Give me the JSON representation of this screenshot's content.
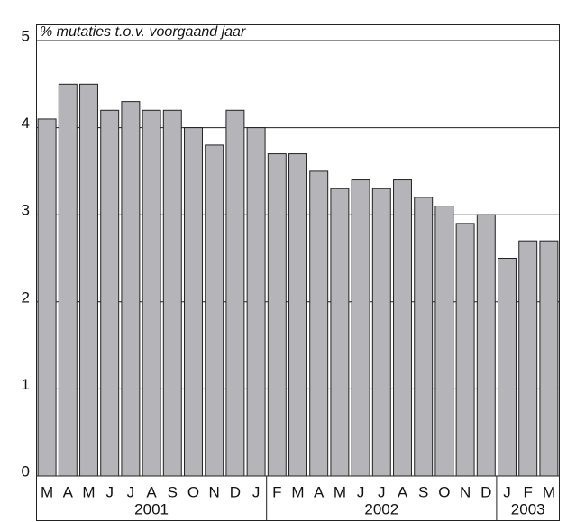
{
  "chart_data": {
    "type": "bar",
    "title": "% mutaties t.o.v. voorgaand jaar",
    "groups": [
      {
        "label": "2001",
        "categories": [
          "M",
          "A",
          "M",
          "J",
          "J",
          "A",
          "S",
          "O",
          "N",
          "D",
          "J"
        ]
      },
      {
        "label": "2002",
        "categories": [
          "F",
          "M",
          "A",
          "M",
          "J",
          "J",
          "A",
          "S",
          "O",
          "N",
          "D"
        ]
      },
      {
        "label": "2003",
        "categories": [
          "J",
          "F",
          "M"
        ]
      }
    ],
    "values": [
      4.1,
      4.5,
      4.5,
      4.2,
      4.3,
      4.2,
      4.2,
      4.0,
      3.8,
      4.2,
      4.0,
      3.7,
      3.7,
      3.5,
      3.3,
      3.4,
      3.3,
      3.4,
      3.2,
      3.1,
      2.9,
      3.0,
      2.5,
      2.7,
      2.7
    ],
    "color": "#b5b5b9",
    "ylim": [
      0,
      5
    ],
    "yticks": [
      0,
      1,
      2,
      3,
      4,
      5
    ],
    "grid": true
  }
}
